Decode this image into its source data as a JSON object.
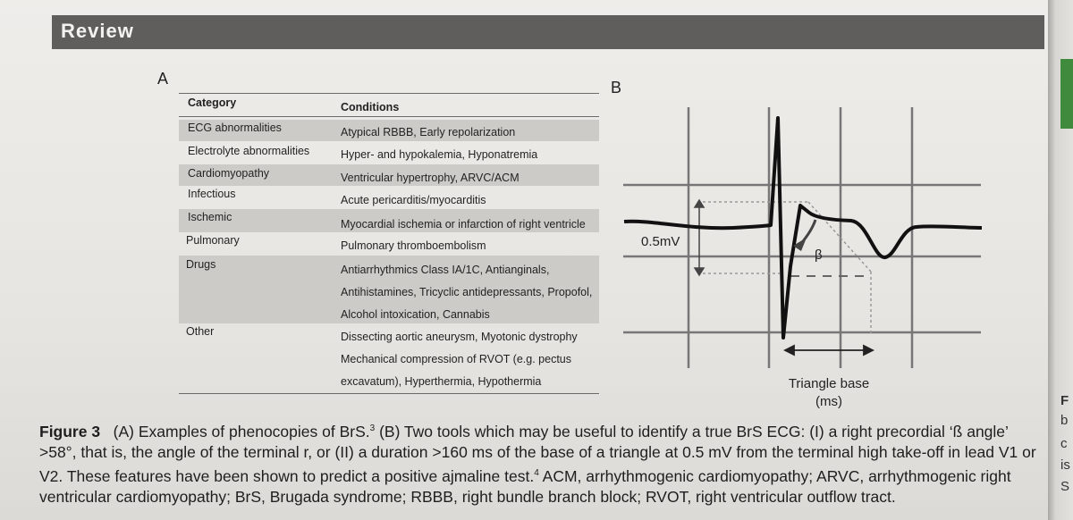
{
  "header": {
    "title": "Review"
  },
  "panel_a": {
    "label": "A",
    "columns": [
      "Category",
      "Conditions"
    ],
    "rows": [
      {
        "category": "ECG abnormalities",
        "lines": [
          "Atypical RBBB, Early repolarization"
        ],
        "shaded": true
      },
      {
        "category": "Electrolyte abnormalities",
        "lines": [
          "Hyper- and hypokalemia, Hyponatremia"
        ],
        "shaded": false
      },
      {
        "category": "Cardiomyopathy",
        "lines": [
          "Ventricular hypertrophy, ARVC/ACM"
        ],
        "shaded": true
      },
      {
        "category": "Infectious",
        "lines": [
          "Acute pericarditis/myocarditis"
        ],
        "shaded": false
      },
      {
        "category": "Ischemic",
        "lines": [
          "Myocardial ischemia or infarction of right ventricle"
        ],
        "shaded": true
      },
      {
        "category": "Pulmonary",
        "lines": [
          "Pulmonary thromboembolism"
        ],
        "shaded": false
      },
      {
        "category": "Drugs",
        "lines": [
          "Antiarrhythmics Class IA/1C, Antianginals,",
          "Antihistamines, Tricyclic antidepressants, Propofol,",
          "Alcohol intoxication, Cannabis"
        ],
        "shaded": true
      },
      {
        "category": "Other",
        "lines": [
          "Dissecting aortic aneurysm, Myotonic dystrophy",
          "Mechanical compression of RVOT (e.g. pectus",
          "excavatum), Hyperthermia, Hypothermia"
        ],
        "shaded": false
      }
    ]
  },
  "panel_b": {
    "label": "B",
    "amplitude_label": "0.5mV",
    "angle_label": "β",
    "base_label_line1": "Triangle base",
    "base_label_line2": "(ms)"
  },
  "caption": {
    "figure": "Figure 3",
    "text_part1": "(A) Examples of phenocopies of BrS.",
    "ref1": "3",
    "text_part2": "(B) Two tools which may be useful to identify a true BrS ECG: (I) a right precordial ‘ß angle’ >58°, that is, the angle of the terminal r, or (II) a duration >160 ms of the base of a triangle at 0.5 mV from the terminal high take-off in lead V1 or V2. These features have been shown to predict a positive ajmaline test.",
    "ref2": "4",
    "text_part3": "ACM, arrhythmogenic cardiomyopathy; ARVC, arrhythmogenic right ventricular cardiomyopathy; BrS, Brugada syndrome; RBBB, right bundle branch block; RVOT, right ventricular outflow tract."
  },
  "right_page": {
    "letters": [
      "F",
      "b",
      "c",
      "is",
      "S"
    ]
  }
}
